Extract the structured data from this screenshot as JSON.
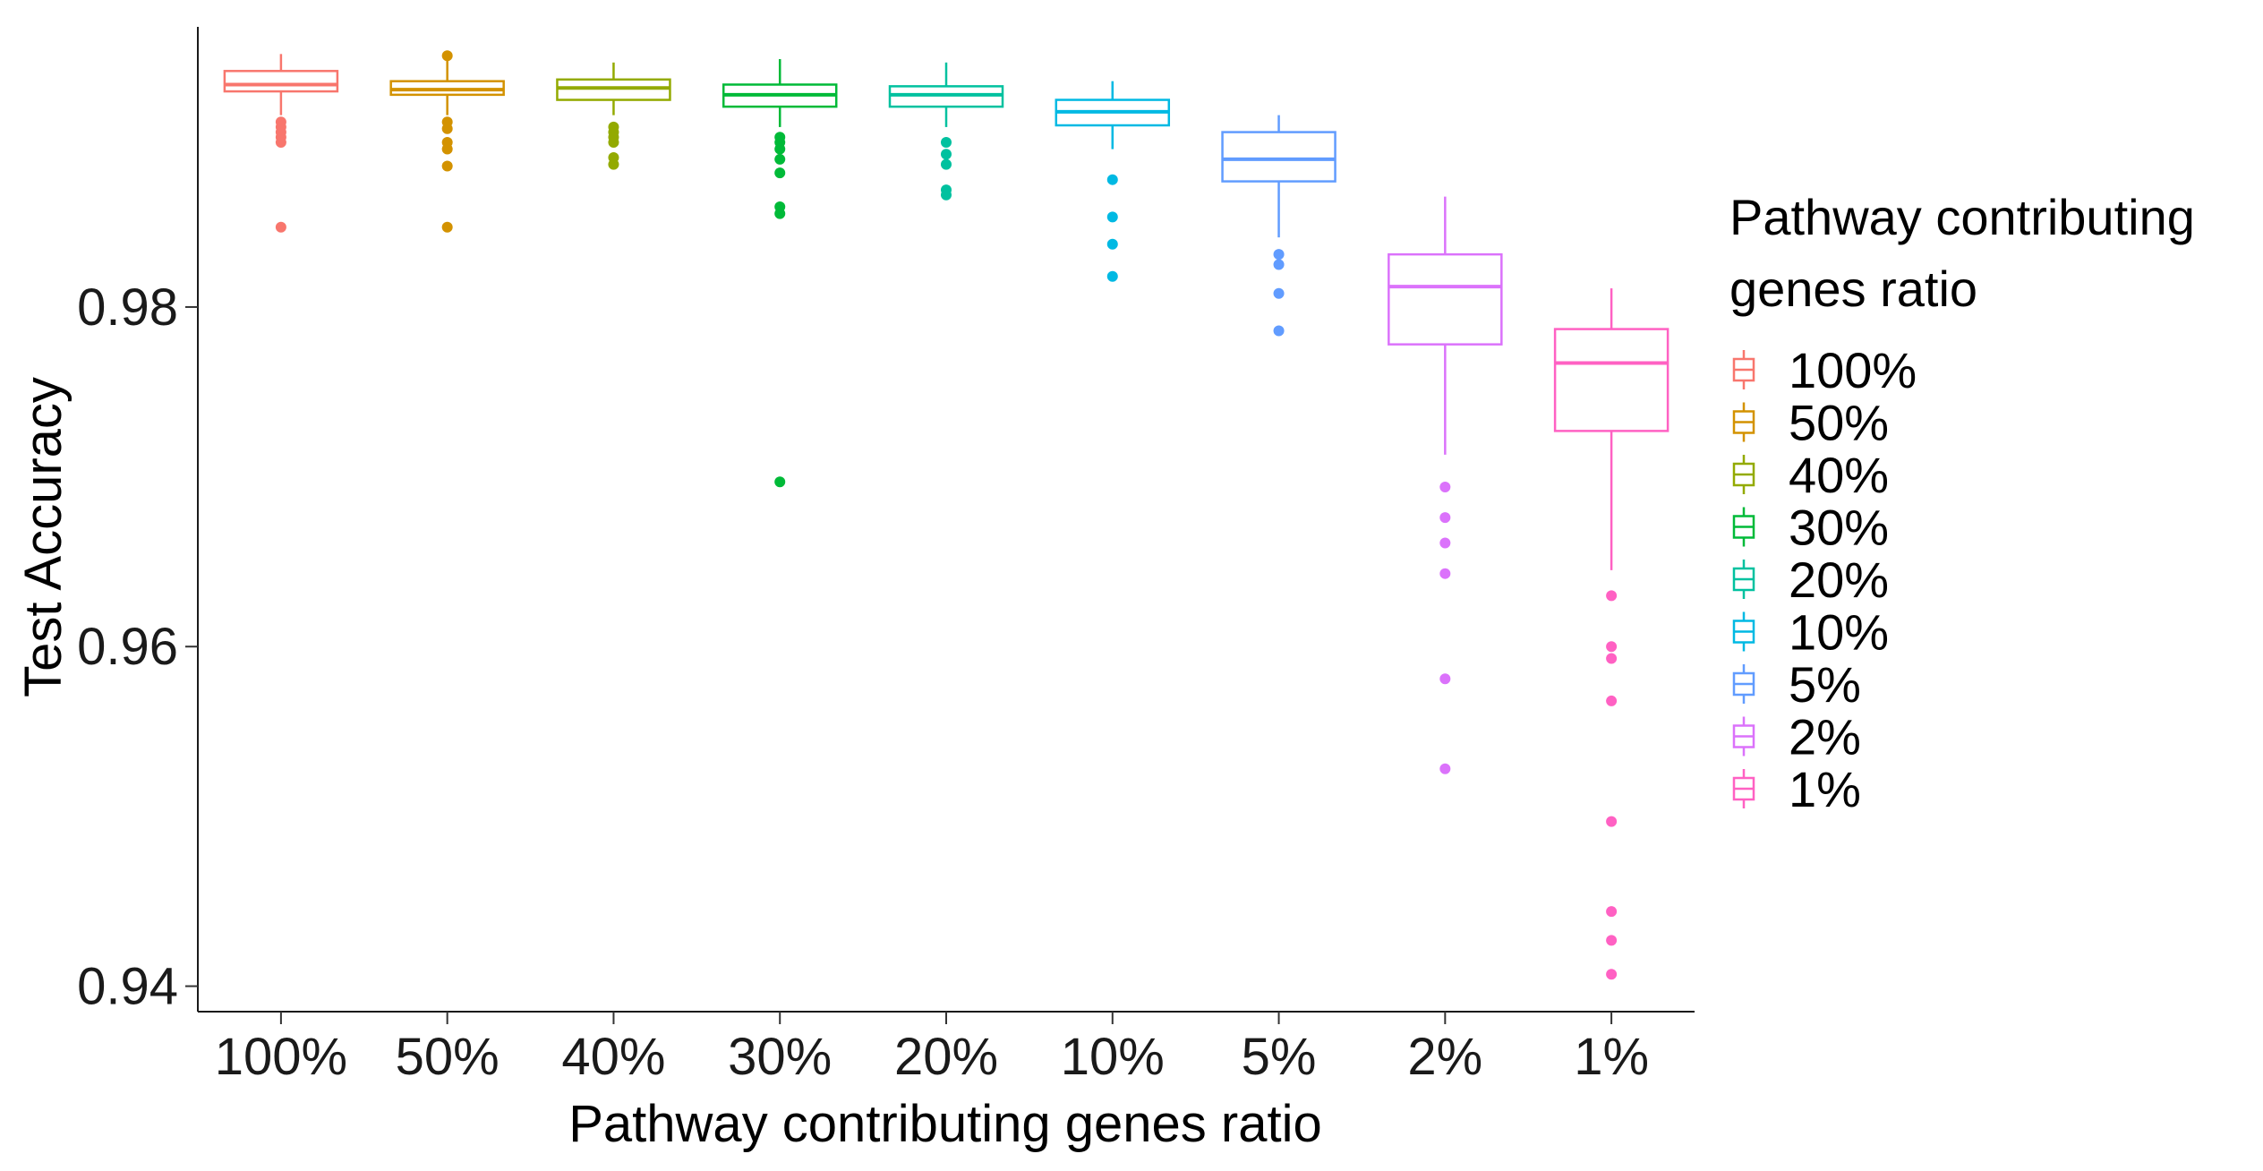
{
  "chart_data": {
    "type": "boxplot",
    "xlabel": "Pathway contributing genes ratio",
    "ylabel": "Test Accuracy",
    "ylim": [
      0.9385,
      0.9965
    ],
    "yticks": [
      0.94,
      0.96,
      0.98
    ],
    "ytick_labels": [
      "0.94",
      "0.96",
      "0.98"
    ],
    "grid": false,
    "legend": {
      "title_lines": [
        "Pathway contributing",
        "genes ratio"
      ],
      "position": "right"
    },
    "categories": [
      "100%",
      "50%",
      "40%",
      "30%",
      "20%",
      "10%",
      "5%",
      "2%",
      "1%"
    ],
    "series": [
      {
        "name": "100%",
        "color": "#F8766D",
        "lower_whisker": 0.9913,
        "q1": 0.9927,
        "median": 0.9931,
        "q3": 0.9939,
        "upper_whisker": 0.9949,
        "outliers": [
          0.9909,
          0.9906,
          0.9903,
          0.99,
          0.9897,
          0.9847
        ]
      },
      {
        "name": "50%",
        "color": "#D39200",
        "lower_whisker": 0.9913,
        "q1": 0.9925,
        "median": 0.9928,
        "q3": 0.9933,
        "upper_whisker": 0.9948,
        "outliers": [
          0.9948,
          0.9909,
          0.9905,
          0.9897,
          0.9893,
          0.9883,
          0.9847
        ]
      },
      {
        "name": "40%",
        "color": "#93AA00",
        "lower_whisker": 0.9913,
        "q1": 0.9922,
        "median": 0.9929,
        "q3": 0.9934,
        "upper_whisker": 0.9944,
        "outliers": [
          0.9906,
          0.9903,
          0.99,
          0.9897,
          0.9888,
          0.9884
        ]
      },
      {
        "name": "30%",
        "color": "#00BA38",
        "lower_whisker": 0.9906,
        "q1": 0.9918,
        "median": 0.9925,
        "q3": 0.9931,
        "upper_whisker": 0.9946,
        "outliers": [
          0.99,
          0.9897,
          0.9893,
          0.9887,
          0.9879,
          0.9859,
          0.9855,
          0.9697
        ]
      },
      {
        "name": "20%",
        "color": "#00C19F",
        "lower_whisker": 0.9906,
        "q1": 0.9918,
        "median": 0.9925,
        "q3": 0.993,
        "upper_whisker": 0.9944,
        "outliers": [
          0.9897,
          0.989,
          0.9884,
          0.9869,
          0.9866
        ]
      },
      {
        "name": "10%",
        "color": "#00B9E3",
        "lower_whisker": 0.9893,
        "q1": 0.9907,
        "median": 0.9915,
        "q3": 0.9922,
        "upper_whisker": 0.9933,
        "outliers": [
          0.9875,
          0.9853,
          0.9837,
          0.9818
        ]
      },
      {
        "name": "5%",
        "color": "#619CFF",
        "lower_whisker": 0.9841,
        "q1": 0.9874,
        "median": 0.9887,
        "q3": 0.9903,
        "upper_whisker": 0.9913,
        "outliers": [
          0.9831,
          0.9825,
          0.9808,
          0.9786
        ]
      },
      {
        "name": "2%",
        "color": "#DB72FB",
        "lower_whisker": 0.9713,
        "q1": 0.9778,
        "median": 0.9812,
        "q3": 0.9831,
        "upper_whisker": 0.9865,
        "outliers": [
          0.9694,
          0.9676,
          0.9661,
          0.9643,
          0.9581,
          0.9528
        ]
      },
      {
        "name": "1%",
        "color": "#FF61C3",
        "lower_whisker": 0.9645,
        "q1": 0.9727,
        "median": 0.9767,
        "q3": 0.9787,
        "upper_whisker": 0.9811,
        "outliers": [
          0.963,
          0.96,
          0.9593,
          0.9568,
          0.9497,
          0.9444,
          0.9427,
          0.9407
        ]
      }
    ]
  }
}
